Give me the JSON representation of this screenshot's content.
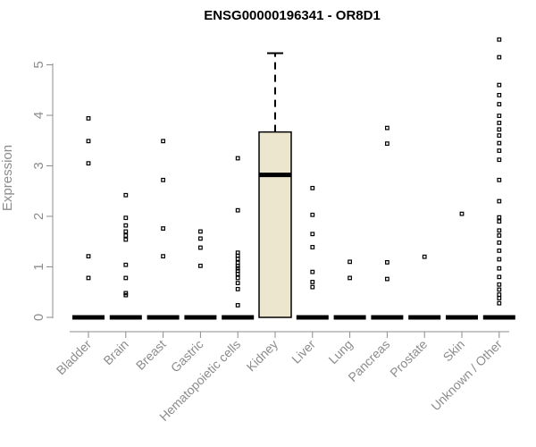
{
  "chart_data": {
    "type": "box",
    "title": "ENSG00000196341 - OR8D1",
    "xlabel": "",
    "ylabel": "Expression",
    "ylim": [
      0,
      5.5
    ],
    "yticks": [
      0,
      1,
      2,
      3,
      4,
      5
    ],
    "categories": [
      "Bladder",
      "Brain",
      "Breast",
      "Gastric",
      "Hematopoietic cells",
      "Kidney",
      "Liver",
      "Lung",
      "Pancreas",
      "Prostate",
      "Skin",
      "Unknown / Other"
    ],
    "boxes": [
      {
        "category": "Bladder",
        "q1": 0,
        "median": 0,
        "q3": 0,
        "whisker_low": 0,
        "whisker_high": 0,
        "outliers": [
          0.78,
          1.21,
          3.05,
          3.49,
          3.94
        ]
      },
      {
        "category": "Brain",
        "q1": 0,
        "median": 0,
        "q3": 0,
        "whisker_low": 0,
        "whisker_high": 0,
        "outliers": [
          0.44,
          0.48,
          0.78,
          1.04,
          1.54,
          1.62,
          1.7,
          1.82,
          1.97,
          2.42
        ]
      },
      {
        "category": "Breast",
        "q1": 0,
        "median": 0,
        "q3": 0,
        "whisker_low": 0,
        "whisker_high": 0,
        "outliers": [
          1.21,
          1.76,
          2.72,
          3.49
        ]
      },
      {
        "category": "Gastric",
        "q1": 0,
        "median": 0,
        "q3": 0,
        "whisker_low": 0,
        "whisker_high": 0,
        "outliers": [
          1.02,
          1.38,
          1.56,
          1.7
        ]
      },
      {
        "category": "Hematopoietic cells",
        "q1": 0,
        "median": 0,
        "q3": 0,
        "whisker_low": 0,
        "whisker_high": 0,
        "outliers": [
          0.24,
          0.56,
          0.68,
          0.78,
          0.86,
          0.92,
          0.97,
          1.02,
          1.08,
          1.16,
          1.22,
          1.28,
          2.12,
          3.15
        ]
      },
      {
        "category": "Kidney",
        "q1": 0,
        "median": 2.82,
        "q3": 3.67,
        "whisker_low": 0,
        "whisker_high": 5.23,
        "outliers": []
      },
      {
        "category": "Liver",
        "q1": 0,
        "median": 0,
        "q3": 0,
        "whisker_low": 0,
        "whisker_high": 0,
        "outliers": [
          0.6,
          0.7,
          0.9,
          1.39,
          1.65,
          2.03,
          2.56
        ]
      },
      {
        "category": "Lung",
        "q1": 0,
        "median": 0,
        "q3": 0,
        "whisker_low": 0,
        "whisker_high": 0,
        "outliers": [
          0.78,
          1.1
        ]
      },
      {
        "category": "Pancreas",
        "q1": 0,
        "median": 0,
        "q3": 0,
        "whisker_low": 0,
        "whisker_high": 0,
        "outliers": [
          0.76,
          1.09,
          3.44,
          3.75
        ]
      },
      {
        "category": "Prostate",
        "q1": 0,
        "median": 0,
        "q3": 0,
        "whisker_low": 0,
        "whisker_high": 0,
        "outliers": [
          1.2
        ]
      },
      {
        "category": "Skin",
        "q1": 0,
        "median": 0,
        "q3": 0,
        "whisker_low": 0,
        "whisker_high": 0,
        "outliers": [
          2.05
        ]
      },
      {
        "category": "Unknown / Other",
        "q1": 0,
        "median": 0,
        "q3": 0,
        "whisker_low": 0,
        "whisker_high": 0,
        "outliers": [
          0.28,
          0.38,
          0.45,
          0.55,
          0.65,
          0.8,
          0.97,
          1.15,
          1.32,
          1.48,
          1.62,
          1.72,
          1.9,
          1.98,
          2.3,
          2.72,
          3.12,
          3.3,
          3.45,
          3.6,
          3.72,
          3.85,
          3.99,
          4.22,
          4.4,
          4.6,
          5.15,
          5.5
        ]
      }
    ],
    "grid": false,
    "legend": "none",
    "colors": {
      "box_fill": "#ede6cf",
      "box_stroke": "#000000",
      "axis": "#8c8c8c",
      "tick_text": "#8c8c8c",
      "title": "#000000"
    }
  }
}
